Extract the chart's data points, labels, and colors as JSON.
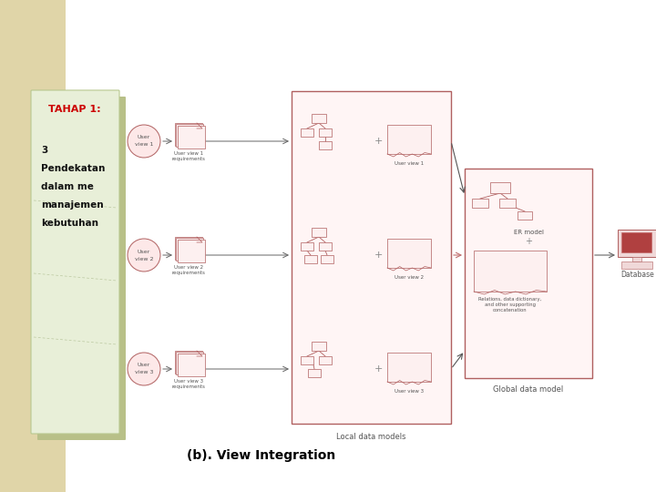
{
  "background_color": "#ffffff",
  "sidebar_color": "#e0d5a8",
  "card_color": "#e8efd8",
  "card_border_color": "#b8c890",
  "card_shadow_color": "#b8c088",
  "title_text": "TAHAP 1:",
  "title_color": "#cc0000",
  "subtitle_lines": [
    "3",
    "Pendekatan",
    "dalam me",
    "manajemen",
    "kebutuhan"
  ],
  "subtitle_color": "#000000",
  "caption": "(b). View Integration",
  "caption_color": "#000000",
  "box_fill": "#fdf0f0",
  "box_border": "#b06060",
  "circle_fill": "#fde8e8",
  "circle_border": "#b06060",
  "arrow_color": "#666666",
  "diag_arrow_color": "#888888",
  "label_color": "#555555",
  "req_labels": [
    "User view 1\nrequirements",
    "User view 2\nrequirements",
    "User view 3\nrequirements"
  ],
  "local_data_models_label": "Local data models",
  "global_data_model_label": "Global data model",
  "er_model_label": "ER model",
  "db_label": "Database",
  "relations_label": "Relations, data dictionary,\nand other supporting\nconcatenation",
  "fig_width": 7.2,
  "fig_height": 5.4,
  "dpi": 100
}
